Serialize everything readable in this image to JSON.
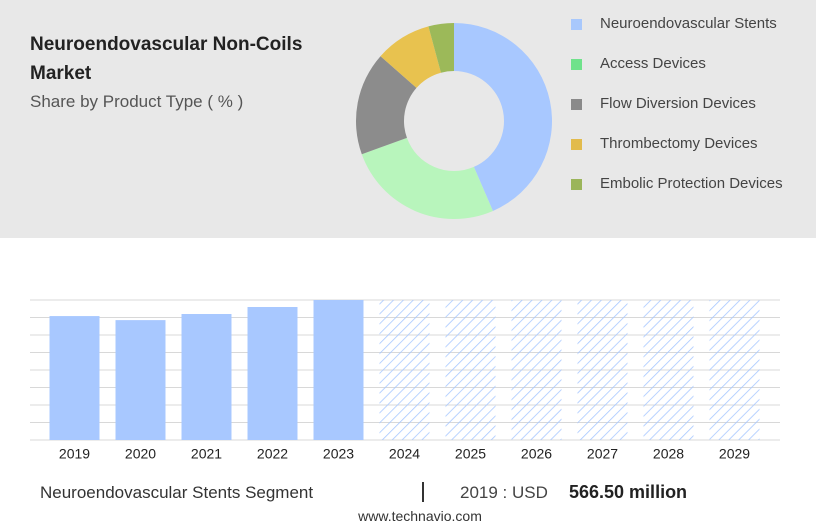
{
  "chart_data": [
    {
      "type": "pie",
      "title": "Neuroendovascular Non-Coils Market",
      "subtitle": "Share by Product Type ( % )",
      "categories": [
        "Neuroendovascular Stents",
        "Access Devices",
        "Flow Diversion Devices",
        "Thrombectomy Devices",
        "Embolic Protection Devices"
      ],
      "values": [
        43.5,
        26,
        17,
        9.3,
        4.2
      ],
      "colors": [
        "#a8c8ff",
        "#b8f5bc",
        "#8c8c8c",
        "#e8c24f",
        "#9cb959"
      ],
      "legend_colors": [
        "#a8c8fc",
        "#6fe28b",
        "#8a8a8a",
        "#e2bb4c",
        "#9bb55a"
      ]
    },
    {
      "type": "bar",
      "categories": [
        "2019",
        "2020",
        "2021",
        "2022",
        "2023",
        "2024",
        "2025",
        "2026",
        "2027",
        "2028",
        "2029"
      ],
      "values": [
        566.5,
        548,
        576,
        608,
        640,
        null,
        null,
        null,
        null,
        null,
        null
      ],
      "color": "#a8c8ff",
      "ylim": [
        0,
        640
      ],
      "yticks": [
        0,
        80,
        160,
        240,
        320,
        400,
        480,
        560,
        640
      ],
      "grid": true
    }
  ],
  "footer": {
    "segment": "Neuroendovascular Stents Segment",
    "year": "2019 : USD",
    "value": "566.50 million",
    "url": "www.technavio.com"
  }
}
